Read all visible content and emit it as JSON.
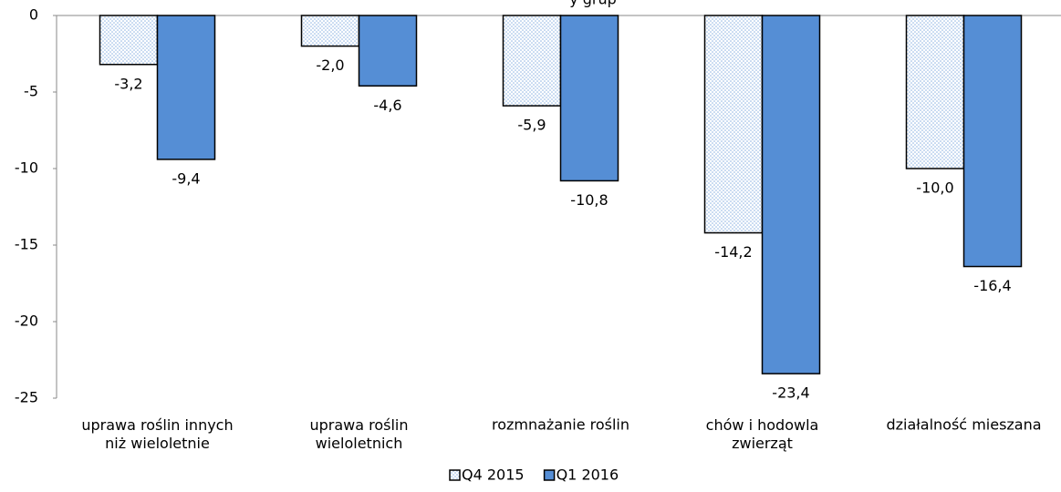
{
  "chart_data": {
    "type": "bar",
    "title": "y grup",
    "categories": [
      "uprawa roślin innych\nniż wieloletnie",
      "uprawa roślin\nwieloletnich",
      "rozmnażanie roślin",
      "chów i hodowla\nzwierząt",
      "działalność mieszana"
    ],
    "series": [
      {
        "name": "Q4 2015",
        "color": "#8eb4e3",
        "pattern": "dots",
        "values": [
          -3.2,
          -2.0,
          -5.9,
          -14.2,
          -10.0
        ],
        "value_labels": [
          "-3,2",
          "-2,0",
          "-5,9",
          "-14,2",
          "-10,0"
        ]
      },
      {
        "name": "Q1 2016",
        "color": "#558ed5",
        "values": [
          -9.4,
          -4.6,
          -10.8,
          -23.4,
          -16.4
        ],
        "value_labels": [
          "-9,4",
          "-4,6",
          "-10,8",
          "-23,4",
          "-16,4"
        ]
      }
    ],
    "ylim": [
      -25,
      0
    ],
    "yticks": [
      0,
      -5,
      -10,
      -15,
      -20,
      -25
    ],
    "legend": "bottom"
  }
}
